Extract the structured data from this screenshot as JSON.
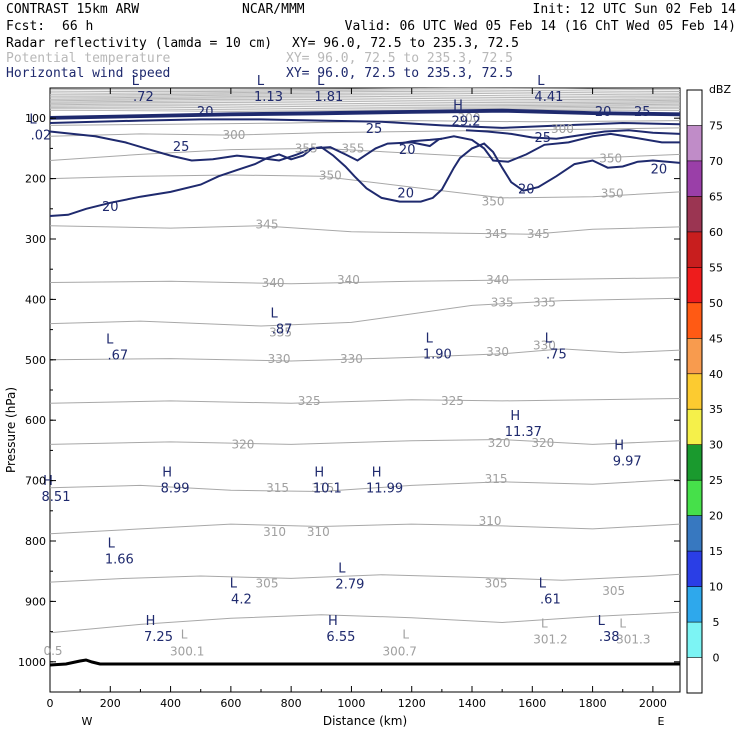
{
  "header": {
    "model": "CONTRAST 15km ARW",
    "center": "NCAR/MMM",
    "init": "Init: 12 UTC Sun 02 Feb 14",
    "fcst_label": "Fcst:",
    "fcst_value": "66 h",
    "valid": "Valid: 06 UTC Wed 05 Feb 14 (16 ChT Wed 05 Feb 14)"
  },
  "fields": [
    {
      "name": "Radar reflectivity (lamda = 10 cm)",
      "xy": "XY=  96.0, 72.5 to 235.3, 72.5",
      "color": "#000000"
    },
    {
      "name": "Potential temperature",
      "xy": "XY=  96.0, 72.5 to 235.3, 72.5",
      "color": "#b8b8b8"
    },
    {
      "name": "Horizontal wind speed",
      "xy": "XY=  96.0, 72.5 to 235.3, 72.5",
      "color": "#1f2a6e"
    }
  ],
  "chart_data": {
    "type": "cross-section",
    "xlabel": "Distance (km)",
    "ylabel": "Pressure (hPa)",
    "xlim": [
      0,
      2090
    ],
    "ylim": [
      1050,
      50
    ],
    "x_ticks": [
      0,
      200,
      400,
      600,
      800,
      1000,
      1200,
      1400,
      1600,
      1800,
      2000
    ],
    "y_ticks": [
      100,
      200,
      300,
      400,
      500,
      600,
      700,
      800,
      900,
      1000
    ],
    "x_end_labels": {
      "left": "W",
      "right": "E"
    },
    "colorbar": {
      "title": "dBZ",
      "levels": [
        75,
        70,
        65,
        60,
        55,
        50,
        45,
        40,
        35,
        30,
        25,
        20,
        15,
        10,
        5,
        0
      ],
      "colors": [
        "#ffffff",
        "#c08cc8",
        "#9a3fa8",
        "#9b3552",
        "#c81e1e",
        "#ee1c1c",
        "#ff5a14",
        "#f89b4e",
        "#fccb30",
        "#f5f04a",
        "#1a9a2e",
        "#46e04a",
        "#3778c0",
        "#2a3ee6",
        "#2ea8ec",
        "#7cf4f4",
        "#ffffff"
      ]
    },
    "theta_labels": [
      {
        "x": 610,
        "p": 128,
        "t": "300"
      },
      {
        "x": 1390,
        "p": 100,
        "t": "300"
      },
      {
        "x": 1700,
        "p": 118,
        "t": "300"
      },
      {
        "x": 850,
        "p": 150,
        "t": "355"
      },
      {
        "x": 1005,
        "p": 150,
        "t": "355"
      },
      {
        "x": 1860,
        "p": 167,
        "t": "350"
      },
      {
        "x": 930,
        "p": 195,
        "t": "350"
      },
      {
        "x": 1470,
        "p": 238,
        "t": "350"
      },
      {
        "x": 1865,
        "p": 225,
        "t": "350"
      },
      {
        "x": 720,
        "p": 276,
        "t": "345"
      },
      {
        "x": 1480,
        "p": 292,
        "t": "345"
      },
      {
        "x": 1620,
        "p": 292,
        "t": "345"
      },
      {
        "x": 740,
        "p": 373,
        "t": "340"
      },
      {
        "x": 990,
        "p": 368,
        "t": "340"
      },
      {
        "x": 1485,
        "p": 368,
        "t": "340"
      },
      {
        "x": 1500,
        "p": 405,
        "t": "335"
      },
      {
        "x": 1640,
        "p": 405,
        "t": "335"
      },
      {
        "x": 765,
        "p": 455,
        "t": "335"
      },
      {
        "x": 760,
        "p": 499,
        "t": "330"
      },
      {
        "x": 1000,
        "p": 499,
        "t": "330"
      },
      {
        "x": 1485,
        "p": 487,
        "t": "330"
      },
      {
        "x": 1640,
        "p": 476,
        "t": "330"
      },
      {
        "x": 860,
        "p": 568,
        "t": "325"
      },
      {
        "x": 1335,
        "p": 568,
        "t": "325"
      },
      {
        "x": 640,
        "p": 640,
        "t": "320"
      },
      {
        "x": 1490,
        "p": 638,
        "t": "320"
      },
      {
        "x": 1635,
        "p": 638,
        "t": "320"
      },
      {
        "x": 755,
        "p": 712,
        "t": "315"
      },
      {
        "x": 905,
        "p": 712,
        "t": "315"
      },
      {
        "x": 1480,
        "p": 697,
        "t": "315"
      },
      {
        "x": 745,
        "p": 785,
        "t": "310"
      },
      {
        "x": 890,
        "p": 785,
        "t": "310"
      },
      {
        "x": 1460,
        "p": 767,
        "t": "310"
      },
      {
        "x": 720,
        "p": 870,
        "t": "305"
      },
      {
        "x": 1480,
        "p": 870,
        "t": "305"
      },
      {
        "x": 1870,
        "p": 883,
        "t": "305"
      },
      {
        "x": 10,
        "p": 982,
        "t": "0.5"
      },
      {
        "x": 455,
        "p": 983,
        "t": "300.1"
      },
      {
        "x": 1160,
        "p": 983,
        "t": "300.7"
      },
      {
        "x": 1660,
        "p": 963,
        "t": "301.2"
      },
      {
        "x": 1935,
        "p": 963,
        "t": "301.3"
      }
    ],
    "theta_l_marks": [
      {
        "x": 445,
        "p": 955
      },
      {
        "x": 1180,
        "p": 955
      },
      {
        "x": 1640,
        "p": 937
      },
      {
        "x": 1900,
        "p": 937
      }
    ],
    "hl_markers": [
      {
        "type": "L",
        "x": 310,
        "p": 52,
        "v": ".72"
      },
      {
        "type": "L",
        "x": 725,
        "p": 52,
        "v": "1.13"
      },
      {
        "type": "L",
        "x": 925,
        "p": 52,
        "v": "1.81"
      },
      {
        "type": "L",
        "x": 1655,
        "p": 52,
        "v": "4.41"
      },
      {
        "type": "H",
        "x": 1380,
        "p": 92,
        "v": "29.2"
      },
      {
        "type": "L",
        "x": -30,
        "p": 115,
        "v": ".02"
      },
      {
        "type": "L",
        "x": 770,
        "p": 437,
        "v": ".87"
      },
      {
        "type": "L",
        "x": 225,
        "p": 480,
        "v": ".67"
      },
      {
        "type": "L",
        "x": 1285,
        "p": 478,
        "v": "1.90"
      },
      {
        "type": "L",
        "x": 1680,
        "p": 478,
        "v": ".75"
      },
      {
        "type": "H",
        "x": 1570,
        "p": 606,
        "v": "11.37"
      },
      {
        "type": "H",
        "x": 1915,
        "p": 655,
        "v": "9.97"
      },
      {
        "type": "H",
        "x": 415,
        "p": 700,
        "v": "8.99"
      },
      {
        "type": "H",
        "x": 920,
        "p": 700,
        "v": "10.1"
      },
      {
        "type": "H",
        "x": 1110,
        "p": 700,
        "v": "11.99"
      },
      {
        "type": "H",
        "x": 20,
        "p": 714,
        "v": "8.51"
      },
      {
        "type": "L",
        "x": 230,
        "p": 817,
        "v": "1.66"
      },
      {
        "type": "L",
        "x": 995,
        "p": 859,
        "v": "2.79"
      },
      {
        "type": "L",
        "x": 635,
        "p": 884,
        "v": "4.2"
      },
      {
        "type": "L",
        "x": 1660,
        "p": 884,
        "v": ".61"
      },
      {
        "type": "H",
        "x": 360,
        "p": 946,
        "v": "7.25"
      },
      {
        "type": "H",
        "x": 965,
        "p": 946,
        "v": "6.55"
      },
      {
        "type": "L",
        "x": 1855,
        "p": 946,
        "v": ".38"
      }
    ],
    "wind_labels": [
      {
        "x": 515,
        "p": 90,
        "t": "20"
      },
      {
        "x": 1835,
        "p": 90,
        "t": "20"
      },
      {
        "x": 1965,
        "p": 90,
        "t": "25"
      },
      {
        "x": 1075,
        "p": 118,
        "t": "25"
      },
      {
        "x": 1635,
        "p": 133,
        "t": "25"
      },
      {
        "x": 435,
        "p": 148,
        "t": "25"
      },
      {
        "x": 1185,
        "p": 153,
        "t": "20"
      },
      {
        "x": 2020,
        "p": 185,
        "t": "20"
      },
      {
        "x": 1580,
        "p": 218,
        "t": "20"
      },
      {
        "x": 1180,
        "p": 225,
        "t": "20"
      },
      {
        "x": 200,
        "p": 247,
        "t": "20"
      }
    ]
  }
}
